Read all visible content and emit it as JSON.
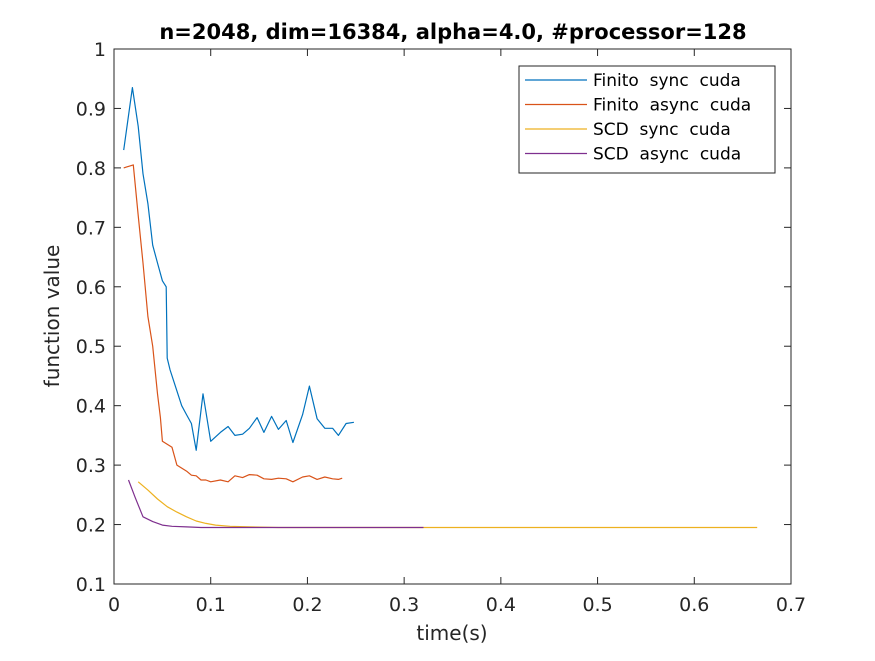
{
  "chart_data": {
    "type": "line",
    "title": "n=2048, dim=16384, alpha=4.0, #processor=128",
    "xlabel": "time(s)",
    "ylabel": "function value",
    "xlim": [
      0,
      0.7
    ],
    "ylim": [
      0.1,
      1.0
    ],
    "xticks": [
      0,
      0.1,
      0.2,
      0.3,
      0.4,
      0.5,
      0.6,
      0.7
    ],
    "xtick_labels": [
      "0",
      "0.1",
      "0.2",
      "0.3",
      "0.4",
      "0.5",
      "0.6",
      "0.7"
    ],
    "yticks": [
      0.1,
      0.2,
      0.3,
      0.4,
      0.5,
      0.6,
      0.7,
      0.8,
      0.9,
      1.0
    ],
    "ytick_labels": [
      "0.1",
      "0.2",
      "0.3",
      "0.4",
      "0.5",
      "0.6",
      "0.7",
      "0.8",
      "0.9",
      "1"
    ],
    "grid": false,
    "legend_position": "top-right",
    "series": [
      {
        "name": "Finito  sync  cuda",
        "color": "#0072BD",
        "x": [
          0.01,
          0.019,
          0.025,
          0.03,
          0.035,
          0.04,
          0.045,
          0.05,
          0.054,
          0.055,
          0.058,
          0.064,
          0.07,
          0.075,
          0.08,
          0.085,
          0.092,
          0.1,
          0.11,
          0.118,
          0.125,
          0.133,
          0.14,
          0.148,
          0.155,
          0.163,
          0.17,
          0.178,
          0.185,
          0.195,
          0.202,
          0.21,
          0.218,
          0.226,
          0.232,
          0.24,
          0.248
        ],
        "y": [
          0.83,
          0.935,
          0.87,
          0.79,
          0.74,
          0.67,
          0.64,
          0.61,
          0.6,
          0.48,
          0.46,
          0.43,
          0.4,
          0.385,
          0.37,
          0.325,
          0.42,
          0.34,
          0.355,
          0.365,
          0.35,
          0.352,
          0.362,
          0.38,
          0.355,
          0.382,
          0.36,
          0.375,
          0.338,
          0.385,
          0.433,
          0.378,
          0.362,
          0.362,
          0.35,
          0.37,
          0.372
        ]
      },
      {
        "name": "Finito  async  cuda",
        "color": "#D95319",
        "x": [
          0.01,
          0.02,
          0.025,
          0.03,
          0.035,
          0.04,
          0.045,
          0.048,
          0.05,
          0.055,
          0.06,
          0.065,
          0.07,
          0.075,
          0.08,
          0.085,
          0.09,
          0.095,
          0.1,
          0.11,
          0.118,
          0.125,
          0.133,
          0.14,
          0.148,
          0.155,
          0.163,
          0.17,
          0.178,
          0.185,
          0.195,
          0.202,
          0.21,
          0.218,
          0.226,
          0.232,
          0.236
        ],
        "y": [
          0.8,
          0.805,
          0.72,
          0.64,
          0.55,
          0.5,
          0.42,
          0.38,
          0.34,
          0.335,
          0.33,
          0.3,
          0.295,
          0.29,
          0.283,
          0.282,
          0.275,
          0.275,
          0.272,
          0.275,
          0.272,
          0.282,
          0.279,
          0.284,
          0.283,
          0.277,
          0.276,
          0.278,
          0.277,
          0.272,
          0.28,
          0.282,
          0.276,
          0.28,
          0.277,
          0.276,
          0.278
        ]
      },
      {
        "name": "SCD  sync  cuda",
        "color": "#EDB120",
        "x": [
          0.025,
          0.035,
          0.045,
          0.055,
          0.065,
          0.075,
          0.085,
          0.095,
          0.105,
          0.12,
          0.14,
          0.17,
          0.2,
          0.3,
          0.4,
          0.5,
          0.6,
          0.665
        ],
        "y": [
          0.272,
          0.258,
          0.243,
          0.23,
          0.221,
          0.213,
          0.206,
          0.202,
          0.199,
          0.197,
          0.196,
          0.195,
          0.195,
          0.195,
          0.195,
          0.195,
          0.195,
          0.195
        ]
      },
      {
        "name": "SCD  async  cuda",
        "color": "#7E2F8E",
        "x": [
          0.015,
          0.022,
          0.03,
          0.04,
          0.05,
          0.06,
          0.075,
          0.09,
          0.12,
          0.16,
          0.2,
          0.25,
          0.3,
          0.32
        ],
        "y": [
          0.275,
          0.245,
          0.213,
          0.205,
          0.199,
          0.197,
          0.196,
          0.195,
          0.195,
          0.195,
          0.195,
          0.195,
          0.195,
          0.195
        ]
      }
    ]
  }
}
